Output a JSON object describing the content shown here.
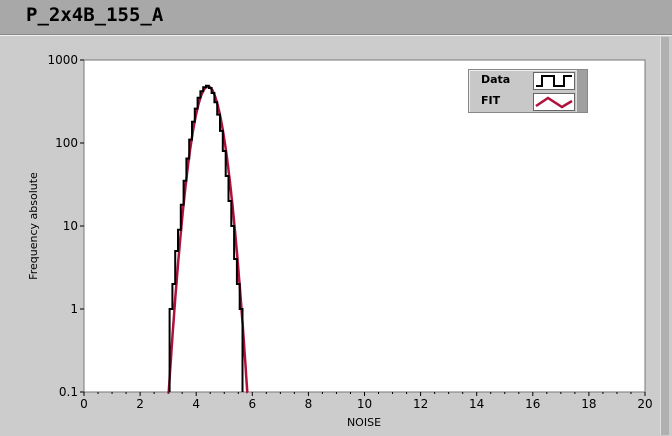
{
  "window": {
    "title": "P_2x4B_155_A"
  },
  "chart_data": {
    "type": "line",
    "xlabel": "NOISE",
    "ylabel": "Frequency absolute",
    "xlim": [
      0,
      20
    ],
    "ylim": [
      0.1,
      1000
    ],
    "yscale": "log",
    "grid": false,
    "x_ticks": [
      "0",
      "2",
      "4",
      "6",
      "8",
      "10",
      "12",
      "14",
      "16",
      "18",
      "20"
    ],
    "y_ticks": [
      "1000",
      "100",
      "10",
      "1",
      "0.1"
    ],
    "legend_placement": "top-right",
    "series": [
      {
        "name": "Data",
        "style": "step",
        "color": "#000000",
        "x": [
          3.1,
          3.2,
          3.3,
          3.4,
          3.5,
          3.6,
          3.7,
          3.8,
          3.9,
          4.0,
          4.1,
          4.2,
          4.3,
          4.4,
          4.5,
          4.6,
          4.7,
          4.8,
          4.9,
          5.0,
          5.1,
          5.2,
          5.3,
          5.4,
          5.5,
          5.6
        ],
        "values": [
          1,
          2,
          5,
          9,
          18,
          35,
          65,
          110,
          180,
          260,
          350,
          420,
          470,
          490,
          460,
          400,
          310,
          220,
          140,
          80,
          40,
          20,
          10,
          4,
          2,
          1
        ]
      },
      {
        "name": "FIT",
        "style": "line",
        "color": "#b0103c",
        "model": "gaussian",
        "amplitude": 480,
        "mean": 4.42,
        "sigma": 0.34,
        "x_range": [
          3.0,
          5.85
        ]
      }
    ]
  }
}
